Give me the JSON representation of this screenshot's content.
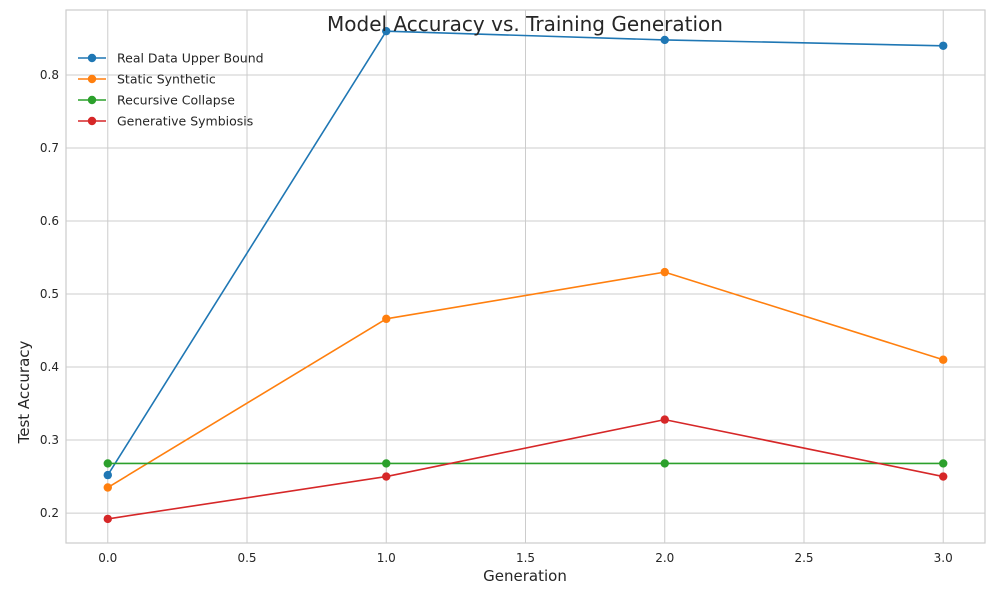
{
  "chart_data": {
    "type": "line",
    "title": "Model Accuracy vs. Training Generation",
    "xlabel": "Generation",
    "ylabel": "Test Accuracy",
    "xlim": [
      -0.15,
      3.15
    ],
    "ylim": [
      0.159,
      0.889
    ],
    "x_ticks": [
      0.0,
      0.5,
      1.0,
      1.5,
      2.0,
      2.5,
      3.0
    ],
    "x_tick_labels": [
      "0.0",
      "0.5",
      "1.0",
      "1.5",
      "2.0",
      "2.5",
      "3.0"
    ],
    "y_ticks": [
      0.2,
      0.3,
      0.4,
      0.5,
      0.6,
      0.7,
      0.8
    ],
    "y_tick_labels": [
      "0.2",
      "0.3",
      "0.4",
      "0.5",
      "0.6",
      "0.7",
      "0.8"
    ],
    "grid": true,
    "legend_position": "top-left",
    "x": [
      0,
      1,
      2,
      3
    ],
    "series": [
      {
        "name": "Real Data Upper Bound",
        "color": "#1f77b4",
        "values": [
          0.252,
          0.86,
          0.848,
          0.84
        ]
      },
      {
        "name": "Static Synthetic",
        "color": "#ff7f0e",
        "values": [
          0.235,
          0.466,
          0.53,
          0.41
        ]
      },
      {
        "name": "Recursive Collapse",
        "color": "#2ca02c",
        "values": [
          0.268,
          0.268,
          0.268,
          0.268
        ]
      },
      {
        "name": "Generative Symbiosis",
        "color": "#d62728",
        "values": [
          0.192,
          0.25,
          0.328,
          0.25
        ]
      }
    ]
  }
}
